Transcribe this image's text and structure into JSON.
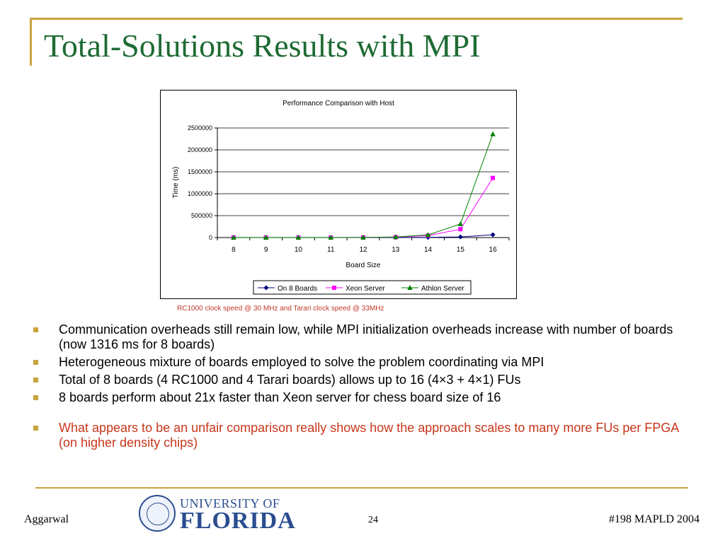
{
  "slide": {
    "title": "Total-Solutions Results with MPI",
    "caption": "RC1000 clock speed @ 30 MHz and Tarari clock speed @ 33MHz",
    "bullets": [
      "Communication overheads still remain low, while MPI initialization overheads increase with number of boards (now 1316 ms for 8 boards)",
      "Heterogeneous mixture of boards employed to solve the problem coordinating via MPI",
      "Total of 8 boards (4 RC1000 and 4 Tarari boards) allows up to 16 (4×3 + 4×1) FUs",
      "8 boards perform about 21x faster than Xeon server for chess board size of 16"
    ],
    "highlight_bullet": "What appears to be an unfair comparison really shows how the approach scales to many more FUs per FPGA (on higher density chips)",
    "footer": {
      "left": "Aggarwal",
      "page": "24",
      "right": "#198 MAPLD 2004"
    },
    "logo": {
      "top": "UNIVERSITY OF",
      "bottom": "FLORIDA"
    }
  },
  "colors": {
    "title": "#1e6b33",
    "accent": "#c8a43c",
    "highlight": "#c8361b",
    "logo": "#2a4d8f"
  },
  "chart_data": {
    "type": "line",
    "title": "Performance Comparison with Host",
    "xlabel": "Board Size",
    "ylabel": "Time (ms)",
    "categories": [
      "8",
      "9",
      "10",
      "11",
      "12",
      "13",
      "14",
      "15",
      "16"
    ],
    "ylim": [
      0,
      2500000
    ],
    "yticks": [
      "0",
      "500000",
      "1000000",
      "1500000",
      "2000000",
      "2500000"
    ],
    "grid": true,
    "legend": "bottom",
    "series": [
      {
        "name": "On 8 Boards",
        "color": "#000080",
        "marker": "diamond",
        "values": [
          1316,
          1400,
          1500,
          1700,
          2000,
          2500,
          5000,
          15000,
          64000
        ]
      },
      {
        "name": "Xeon Server",
        "color": "#ff00ff",
        "marker": "square",
        "values": [
          5,
          20,
          80,
          400,
          2000,
          10000,
          45000,
          190000,
          1360000
        ]
      },
      {
        "name": "Athlon Server",
        "color": "#008000",
        "marker": "triangle",
        "values": [
          5,
          25,
          100,
          500,
          2500,
          15000,
          60000,
          310000,
          2360000
        ]
      }
    ]
  }
}
